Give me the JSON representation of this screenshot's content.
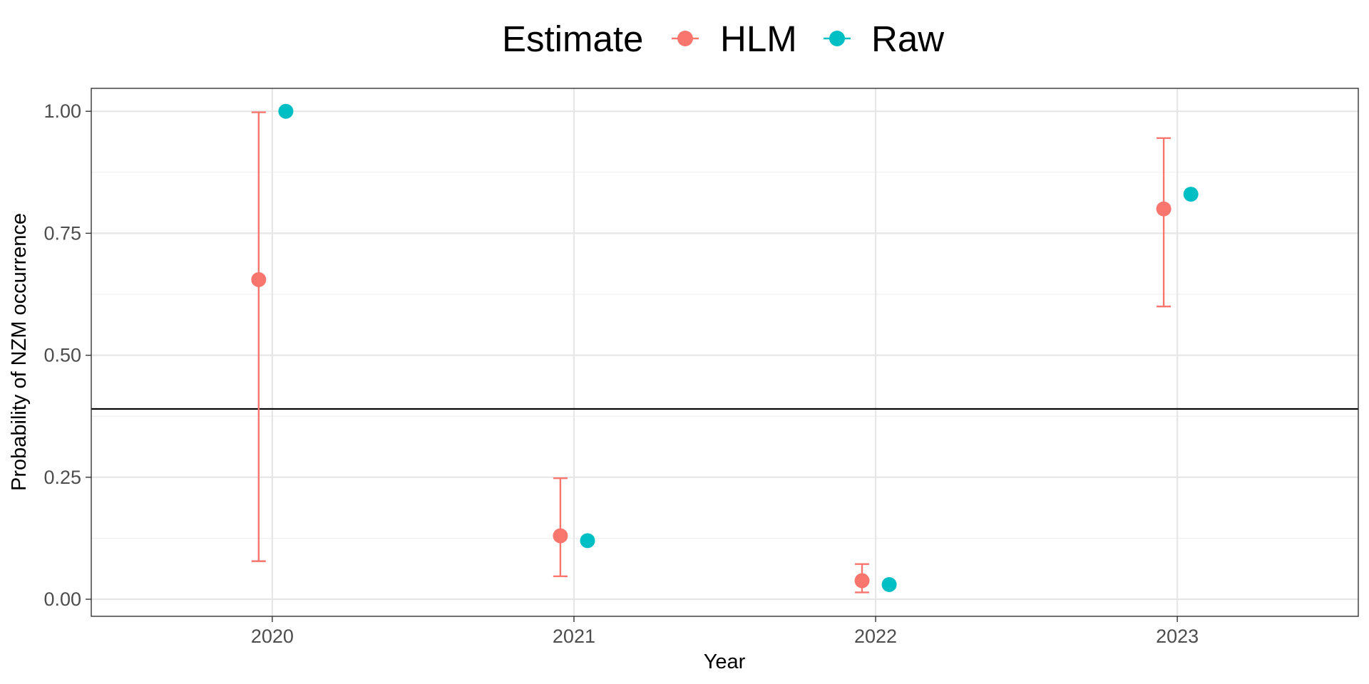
{
  "chart_data": {
    "type": "scatter",
    "xlabel": "Year",
    "ylabel": "Probability of NZM occurrence",
    "categories": [
      "2020",
      "2021",
      "2022",
      "2023"
    ],
    "ylim": [
      -0.035,
      1.047
    ],
    "yticks": [
      "0.00",
      "0.25",
      "0.50",
      "0.75",
      "1.00"
    ],
    "ytick_values": [
      0,
      0.25,
      0.5,
      0.75,
      1.0
    ],
    "grid": true,
    "legend": {
      "title": "Estimate",
      "position": "top",
      "entries": [
        "HLM",
        "Raw"
      ]
    },
    "reference_line": {
      "y": 0.39
    },
    "series": [
      {
        "name": "HLM",
        "color": "#F8766D",
        "values": [
          0.655,
          0.13,
          0.038,
          0.8
        ],
        "lower": [
          0.078,
          0.047,
          0.014,
          0.6
        ],
        "upper": [
          0.998,
          0.248,
          0.072,
          0.945
        ]
      },
      {
        "name": "Raw",
        "color": "#00BFC4",
        "values": [
          1.0,
          0.12,
          0.03,
          0.83
        ]
      }
    ]
  }
}
